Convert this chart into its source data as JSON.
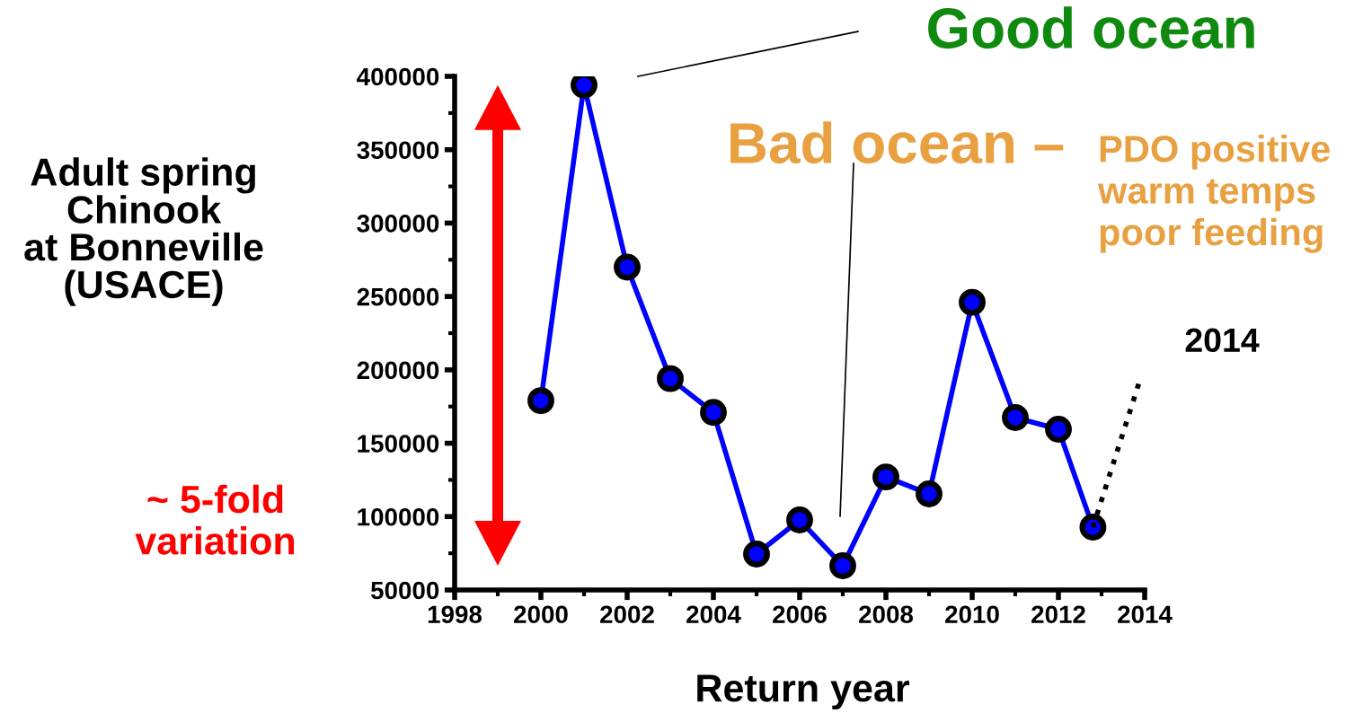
{
  "chart_data": {
    "type": "line",
    "ylabel": "Adult spring\nChinook\nat Bonneville\n(USACE)",
    "xlabel": "Return year",
    "x": [
      2000,
      2001,
      2002,
      2003,
      2004,
      2005,
      2006,
      2007,
      2008,
      2009,
      2010,
      2011,
      2012,
      2012.8
    ],
    "series": [
      {
        "color": "#0000ff",
        "marker": "circle",
        "line_style": "solid",
        "values": [
          179000,
          394000,
          270000,
          194000,
          171000,
          74500,
          97700,
          66500,
          127000,
          115500,
          246000,
          167500,
          159500,
          92800
        ]
      },
      {
        "color": "#000000",
        "marker": "none",
        "line_style": "dotted",
        "x": [
          2012.8,
          2013.9
        ],
        "values": [
          92800,
          194000
        ]
      }
    ],
    "xlim": [
      1998,
      2014
    ],
    "xticks": [
      1998,
      2000,
      2002,
      2004,
      2006,
      2008,
      2010,
      2012,
      2014
    ],
    "ylim": [
      50000,
      400000
    ],
    "yticks": [
      50000,
      100000,
      150000,
      200000,
      250000,
      300000,
      350000,
      400000
    ],
    "grid": false,
    "annotations": [
      "Good ocean",
      "Bad ocean –",
      "PDO positive\nwarm temps\npoor feeding",
      "2014",
      "~ 5-fold\nvariation"
    ]
  }
}
